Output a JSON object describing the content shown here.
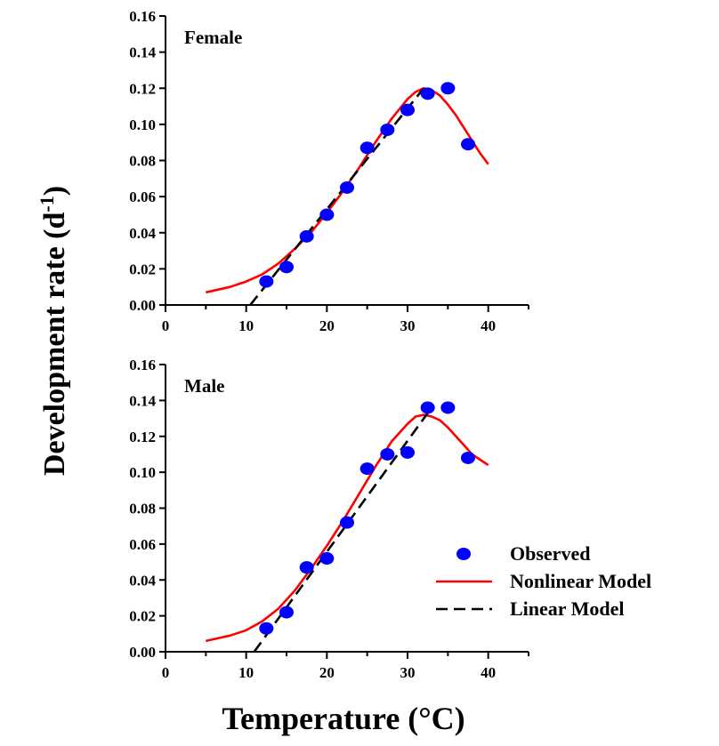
{
  "chart_data": {
    "type": "scatter",
    "xlabel": "Temperature (°C)",
    "ylabel": "Development rate (d",
    "ylabel_superscript": "-1",
    "ylabel_suffix": ")",
    "xlim": [
      0,
      45
    ],
    "ylim": [
      0,
      0.16
    ],
    "x_ticks": [
      0,
      10,
      20,
      30,
      40
    ],
    "y_ticks": [
      "0.00",
      "0.02",
      "0.04",
      "0.06",
      "0.08",
      "0.10",
      "0.12",
      "0.14",
      "0.16"
    ],
    "legend": {
      "position": "lower-right of bottom panel",
      "entries": [
        {
          "label": "Observed",
          "style": "marker",
          "color": "#0000ff"
        },
        {
          "label": "Nonlinear Model",
          "style": "solid",
          "color": "#ff0000"
        },
        {
          "label": "Linear Model",
          "style": "dashed",
          "color": "#000000"
        }
      ]
    },
    "panels": [
      {
        "label": "Female",
        "observed": {
          "x": [
            12.5,
            15,
            17.5,
            20,
            22.5,
            25,
            27.5,
            30,
            32.5,
            35,
            37.5
          ],
          "y": [
            0.013,
            0.021,
            0.038,
            0.05,
            0.065,
            0.087,
            0.097,
            0.108,
            0.117,
            0.12,
            0.089
          ]
        },
        "linear_model": {
          "x": [
            10.5,
            32
          ],
          "y": [
            0.0,
            0.12
          ]
        },
        "nonlinear_model": {
          "x": [
            5,
            8,
            10,
            12,
            14,
            16,
            18,
            20,
            22,
            24,
            26,
            28,
            30,
            31,
            32,
            33,
            34,
            35,
            36,
            37,
            38,
            39,
            40
          ],
          "y": [
            0.007,
            0.01,
            0.013,
            0.017,
            0.023,
            0.031,
            0.04,
            0.051,
            0.063,
            0.076,
            0.09,
            0.103,
            0.114,
            0.118,
            0.12,
            0.119,
            0.116,
            0.111,
            0.105,
            0.098,
            0.091,
            0.084,
            0.078
          ]
        }
      },
      {
        "label": "Male",
        "observed": {
          "x": [
            12.5,
            15,
            17.5,
            20,
            22.5,
            25,
            27.5,
            30,
            32.5,
            35,
            37.5
          ],
          "y": [
            0.013,
            0.022,
            0.047,
            0.052,
            0.072,
            0.102,
            0.11,
            0.111,
            0.136,
            0.136,
            0.108
          ]
        },
        "linear_model": {
          "x": [
            11,
            32.5
          ],
          "y": [
            0.0,
            0.133
          ]
        },
        "nonlinear_model": {
          "x": [
            5,
            8,
            10,
            12,
            14,
            16,
            18,
            20,
            22,
            24,
            26,
            28,
            30,
            31,
            32,
            33,
            34,
            35,
            36,
            37,
            38,
            39,
            40
          ],
          "y": [
            0.006,
            0.009,
            0.012,
            0.017,
            0.024,
            0.034,
            0.046,
            0.059,
            0.073,
            0.088,
            0.103,
            0.117,
            0.127,
            0.131,
            0.132,
            0.131,
            0.129,
            0.125,
            0.12,
            0.115,
            0.11,
            0.107,
            0.104
          ]
        }
      }
    ]
  }
}
